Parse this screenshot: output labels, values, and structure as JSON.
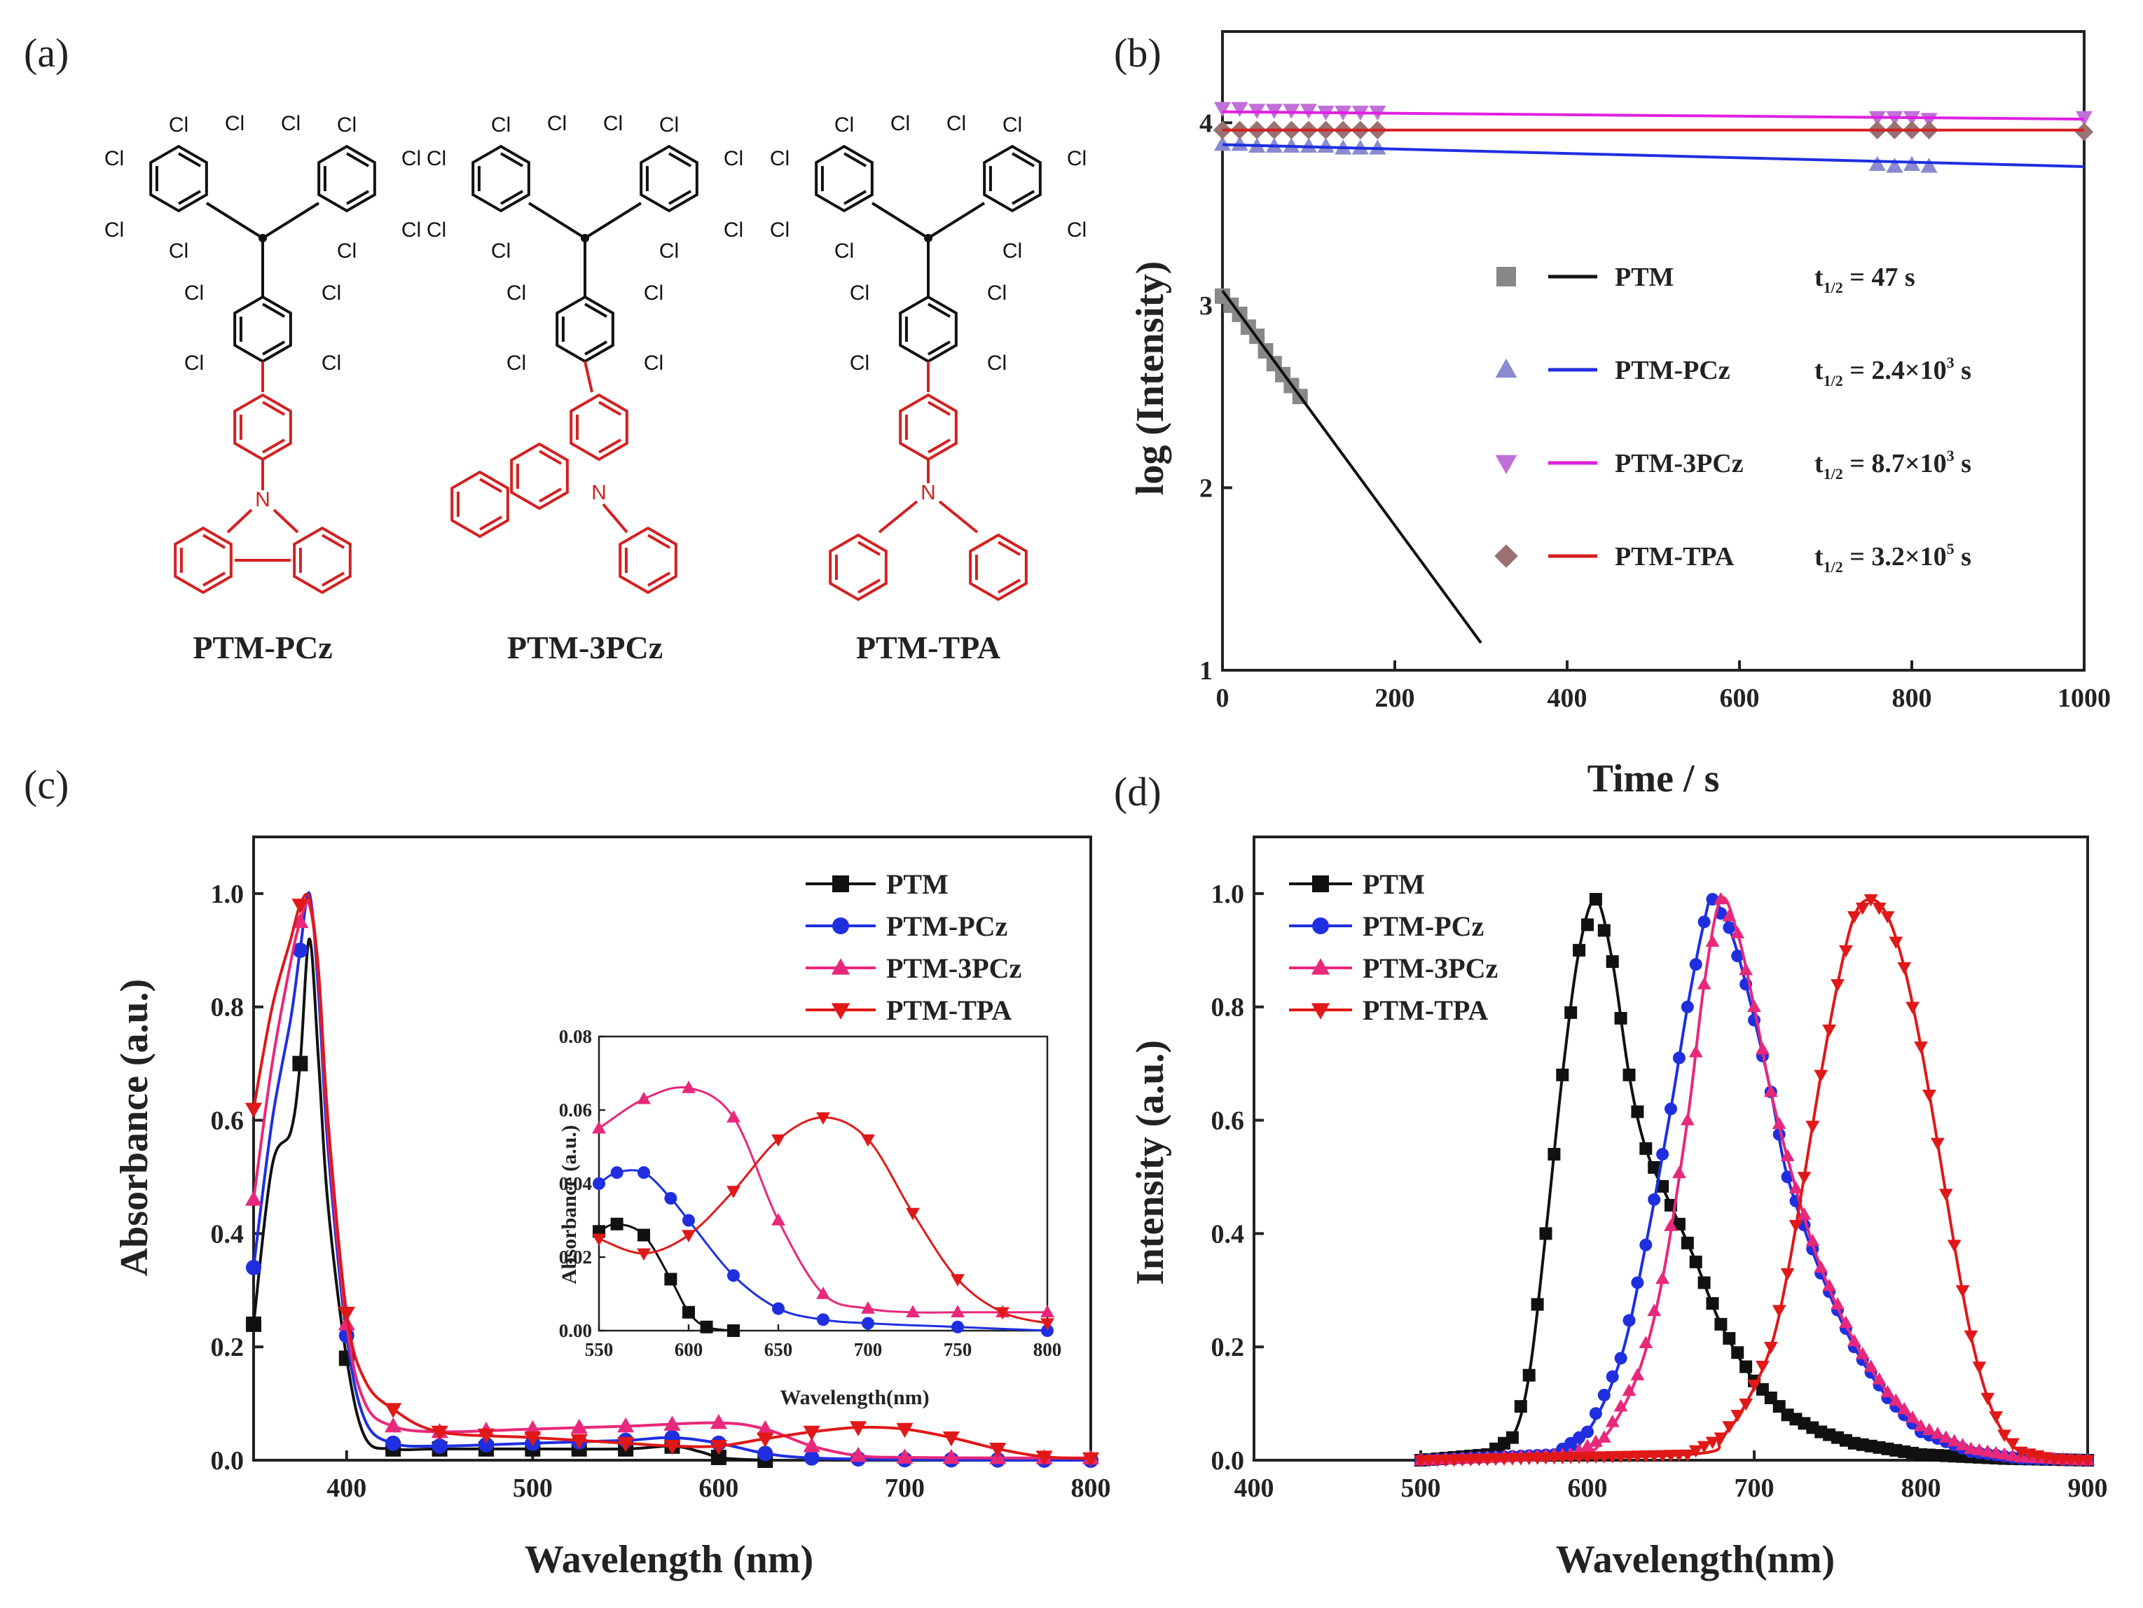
{
  "figure": {
    "panel_labels": [
      "(a)",
      "(b)",
      "(c)",
      "(d)"
    ],
    "atom_labels": {
      "chlorine": "Cl",
      "nitrogen": "N"
    },
    "molecules": [
      "PTM-PCz",
      "PTM-3PCz",
      "PTM-TPA"
    ]
  },
  "colors": {
    "PTM": "#111111",
    "PTM-PCz": "#1f2fe0",
    "PTM-3PCz": "#e8287a",
    "PTM-TPA": "#e01818",
    "b_PTM_marker": "#888888",
    "b_PCz_marker": "#8a8ad0",
    "b_3PCz_marker": "#c070d8",
    "b_TPA_marker": "#9a7070",
    "b_3PCz_line": "#e020e0",
    "b_TPA_line": "#d42020",
    "b_PCz_line": "#1f2fe0"
  },
  "chart_data": [
    {
      "panel": "(b)",
      "type": "scatter",
      "xlabel": "Time / s",
      "ylabel": "log (Intensity)",
      "xlim": [
        0,
        1000
      ],
      "ylim": [
        1,
        4.5
      ],
      "xticks": [
        "0",
        "200",
        "400",
        "600",
        "800",
        "1000"
      ],
      "yticks": [
        "1",
        "2",
        "3",
        "4"
      ],
      "series": [
        {
          "name": "PTM",
          "thalf": "t",
          "thalf_sub": "1/2",
          "thalf_value": " = 47 s",
          "marker": "square",
          "x": [
            0,
            10,
            20,
            30,
            40,
            50,
            60,
            70,
            80,
            90
          ],
          "y": [
            3.05,
            3.0,
            2.95,
            2.88,
            2.83,
            2.75,
            2.68,
            2.62,
            2.56,
            2.5
          ],
          "fit": {
            "x": [
              0,
              300
            ],
            "y": [
              3.08,
              1.15
            ]
          }
        },
        {
          "name": "PTM-PCz",
          "thalf": "t",
          "thalf_sub": "1/2",
          "thalf_value": " = 2.4×10",
          "thalf_exp": "3",
          "thalf_unit": " s",
          "marker": "triangle-up",
          "x": [
            0,
            20,
            40,
            60,
            80,
            100,
            120,
            140,
            160,
            180,
            760,
            780,
            800,
            820
          ],
          "y": [
            3.88,
            3.88,
            3.87,
            3.87,
            3.87,
            3.87,
            3.87,
            3.86,
            3.86,
            3.86,
            3.77,
            3.76,
            3.77,
            3.76
          ],
          "fit": {
            "x": [
              0,
              1000
            ],
            "y": [
              3.88,
              3.76
            ]
          }
        },
        {
          "name": "PTM-3PCz",
          "thalf": "t",
          "thalf_sub": "1/2",
          "thalf_value": " = 8.7×10",
          "thalf_exp": "3",
          "thalf_unit": " s",
          "marker": "triangle-down",
          "x": [
            0,
            20,
            40,
            60,
            80,
            100,
            120,
            140,
            160,
            180,
            760,
            780,
            800,
            820,
            1000
          ],
          "y": [
            4.08,
            4.08,
            4.07,
            4.07,
            4.07,
            4.07,
            4.06,
            4.06,
            4.06,
            4.06,
            4.03,
            4.03,
            4.03,
            4.02,
            4.03
          ],
          "fit": {
            "x": [
              0,
              1000
            ],
            "y": [
              4.06,
              4.02
            ]
          }
        },
        {
          "name": "PTM-TPA",
          "thalf": "t",
          "thalf_sub": "1/2",
          "thalf_value": " = 3.2×10",
          "thalf_exp": "5",
          "thalf_unit": " s",
          "marker": "diamond",
          "x": [
            0,
            20,
            40,
            60,
            80,
            100,
            120,
            140,
            160,
            180,
            760,
            780,
            800,
            820,
            1000
          ],
          "y": [
            3.96,
            3.96,
            3.96,
            3.96,
            3.96,
            3.96,
            3.96,
            3.96,
            3.96,
            3.96,
            3.96,
            3.96,
            3.96,
            3.96,
            3.95
          ],
          "fit": {
            "x": [
              0,
              1000
            ],
            "y": [
              3.96,
              3.96
            ]
          }
        }
      ]
    },
    {
      "panel": "(c)",
      "type": "line",
      "xlabel": "Wavelength (nm)",
      "ylabel": "Absorbance (a.u.)",
      "xlim": [
        350,
        800
      ],
      "ylim": [
        0,
        1.1
      ],
      "xticks": [
        "400",
        "500",
        "600",
        "700",
        "800"
      ],
      "yticks": [
        "0.0",
        "0.2",
        "0.4",
        "0.6",
        "0.8",
        "1.0"
      ],
      "legend_position": "top-right",
      "series": [
        {
          "name": "PTM",
          "marker": "square",
          "x": [
            350,
            360,
            370,
            375,
            380,
            385,
            390,
            400,
            410,
            425,
            450,
            500,
            550,
            575,
            590,
            600,
            610,
            625
          ],
          "y": [
            0.24,
            0.52,
            0.58,
            0.7,
            0.92,
            0.7,
            0.45,
            0.18,
            0.04,
            0.02,
            0.02,
            0.02,
            0.02,
            0.025,
            0.015,
            0.005,
            0.002,
            0.0
          ]
        },
        {
          "name": "PTM-PCz",
          "marker": "circle",
          "x": [
            350,
            360,
            370,
            375,
            380,
            385,
            390,
            400,
            410,
            425,
            450,
            500,
            550,
            575,
            600,
            625,
            650,
            700,
            800
          ],
          "y": [
            0.34,
            0.6,
            0.78,
            0.9,
            1.0,
            0.82,
            0.55,
            0.22,
            0.07,
            0.03,
            0.025,
            0.03,
            0.035,
            0.04,
            0.03,
            0.012,
            0.004,
            0.001,
            0.0
          ]
        },
        {
          "name": "PTM-3PCz",
          "marker": "triangle-up",
          "x": [
            350,
            360,
            370,
            375,
            380,
            385,
            390,
            400,
            410,
            425,
            450,
            500,
            550,
            600,
            625,
            650,
            675,
            700,
            750,
            800
          ],
          "y": [
            0.46,
            0.7,
            0.88,
            0.95,
            0.98,
            0.85,
            0.58,
            0.24,
            0.1,
            0.06,
            0.05,
            0.055,
            0.06,
            0.066,
            0.055,
            0.025,
            0.008,
            0.005,
            0.004,
            0.004
          ]
        },
        {
          "name": "PTM-TPA",
          "marker": "triangle-down",
          "x": [
            350,
            360,
            370,
            375,
            380,
            385,
            390,
            400,
            410,
            425,
            450,
            500,
            550,
            575,
            600,
            625,
            650,
            675,
            700,
            725,
            750,
            775,
            800
          ],
          "y": [
            0.62,
            0.8,
            0.92,
            0.98,
            0.99,
            0.86,
            0.6,
            0.26,
            0.14,
            0.09,
            0.05,
            0.04,
            0.03,
            0.025,
            0.025,
            0.038,
            0.05,
            0.058,
            0.055,
            0.04,
            0.02,
            0.006,
            0.003
          ]
        }
      ],
      "inset": {
        "xlabel": "Wavelength(nm)",
        "ylabel": "Absorbance (a.u.)",
        "xlim": [
          550,
          800
        ],
        "ylim": [
          0,
          0.08
        ],
        "xticks": [
          "550",
          "600",
          "650",
          "700",
          "750",
          "800"
        ],
        "yticks": [
          "0.00",
          "0.02",
          "0.04",
          "0.06",
          "0.08"
        ],
        "series": [
          {
            "name": "PTM",
            "x": [
              550,
              560,
              575,
              590,
              600,
              610,
              625
            ],
            "y": [
              0.027,
              0.029,
              0.026,
              0.014,
              0.005,
              0.001,
              0.0
            ]
          },
          {
            "name": "PTM-PCz",
            "x": [
              550,
              560,
              575,
              590,
              600,
              625,
              650,
              675,
              700,
              750,
              800
            ],
            "y": [
              0.04,
              0.043,
              0.043,
              0.036,
              0.03,
              0.015,
              0.006,
              0.003,
              0.002,
              0.001,
              0.0
            ]
          },
          {
            "name": "PTM-3PCz",
            "x": [
              550,
              575,
              600,
              625,
              650,
              675,
              700,
              725,
              750,
              775,
              800
            ],
            "y": [
              0.055,
              0.063,
              0.066,
              0.058,
              0.03,
              0.01,
              0.006,
              0.005,
              0.005,
              0.005,
              0.005
            ]
          },
          {
            "name": "PTM-TPA",
            "x": [
              550,
              575,
              600,
              625,
              650,
              675,
              700,
              725,
              750,
              775,
              800
            ],
            "y": [
              0.025,
              0.021,
              0.026,
              0.038,
              0.052,
              0.058,
              0.052,
              0.032,
              0.014,
              0.005,
              0.002
            ]
          }
        ]
      }
    },
    {
      "panel": "(d)",
      "type": "line",
      "xlabel": "Wavelength(nm)",
      "ylabel": "Intensity (a.u.)",
      "xlim": [
        400,
        900
      ],
      "ylim": [
        0,
        1.1
      ],
      "xticks": [
        "400",
        "500",
        "600",
        "700",
        "800",
        "900"
      ],
      "yticks": [
        "0.0",
        "0.2",
        "0.4",
        "0.6",
        "0.8",
        "1.0"
      ],
      "legend_position": "top-left",
      "series": [
        {
          "name": "PTM",
          "marker": "square",
          "x": [
            500,
            540,
            555,
            565,
            575,
            585,
            595,
            605,
            615,
            625,
            635,
            650,
            665,
            680,
            700,
            720,
            740,
            760,
            800,
            850,
            900
          ],
          "y": [
            0.0,
            0.01,
            0.04,
            0.15,
            0.4,
            0.68,
            0.9,
            0.99,
            0.88,
            0.68,
            0.55,
            0.45,
            0.35,
            0.24,
            0.14,
            0.08,
            0.05,
            0.03,
            0.01,
            0.003,
            0.0
          ]
        },
        {
          "name": "PTM-PCz",
          "marker": "circle",
          "x": [
            500,
            580,
            600,
            620,
            635,
            650,
            660,
            670,
            675,
            685,
            695,
            710,
            720,
            740,
            760,
            780,
            800,
            830,
            860,
            900
          ],
          "y": [
            0.0,
            0.01,
            0.05,
            0.18,
            0.38,
            0.62,
            0.8,
            0.95,
            0.99,
            0.94,
            0.84,
            0.65,
            0.5,
            0.33,
            0.2,
            0.11,
            0.05,
            0.015,
            0.003,
            0.0
          ]
        },
        {
          "name": "PTM-3PCz",
          "marker": "triangle-up",
          "x": [
            500,
            590,
            610,
            630,
            645,
            660,
            670,
            680,
            690,
            700,
            710,
            725,
            740,
            760,
            780,
            800,
            830,
            860,
            900
          ],
          "y": [
            0.0,
            0.01,
            0.04,
            0.15,
            0.32,
            0.6,
            0.84,
            0.99,
            0.93,
            0.8,
            0.65,
            0.48,
            0.34,
            0.21,
            0.12,
            0.06,
            0.02,
            0.005,
            0.0
          ]
        },
        {
          "name": "PTM-TPA",
          "marker": "triangle-down",
          "x": [
            500,
            660,
            680,
            695,
            710,
            720,
            730,
            740,
            750,
            760,
            770,
            780,
            790,
            800,
            810,
            820,
            830,
            840,
            850,
            860,
            880,
            900
          ],
          "y": [
            0.0,
            0.01,
            0.04,
            0.1,
            0.2,
            0.33,
            0.5,
            0.68,
            0.84,
            0.96,
            0.99,
            0.96,
            0.87,
            0.73,
            0.56,
            0.38,
            0.22,
            0.11,
            0.045,
            0.015,
            0.002,
            0.0
          ]
        }
      ]
    }
  ]
}
